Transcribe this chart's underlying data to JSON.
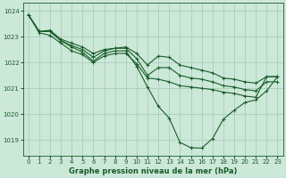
{
  "title": "Graphe pression niveau de la mer (hPa)",
  "bg_color": "#cce8d8",
  "grid_color": "#aacfbc",
  "line_color": "#1a5c2a",
  "xlim": [
    -0.5,
    23.5
  ],
  "ylim": [
    1018.4,
    1024.3
  ],
  "yticks": [
    1019,
    1020,
    1021,
    1022,
    1023,
    1024
  ],
  "xticks": [
    0,
    1,
    2,
    3,
    4,
    5,
    6,
    7,
    8,
    9,
    10,
    11,
    12,
    13,
    14,
    15,
    16,
    17,
    18,
    19,
    20,
    21,
    22,
    23
  ],
  "series": [
    [
      1023.85,
      1023.2,
      1023.2,
      1022.85,
      1022.6,
      1022.4,
      1022.05,
      1022.35,
      1022.45,
      1022.45,
      1021.85,
      1021.05,
      1020.3,
      1019.85,
      1018.9,
      1018.7,
      1018.68,
      1019.05,
      1019.8,
      1020.15,
      1020.45,
      1020.55,
      1020.9,
      1021.45
    ],
    [
      1023.85,
      1023.2,
      1023.2,
      1022.85,
      1022.65,
      1022.5,
      1022.2,
      1022.45,
      1022.55,
      1022.55,
      1022.15,
      1021.5,
      1021.8,
      1021.8,
      1021.5,
      1021.4,
      1021.35,
      1021.25,
      1021.1,
      1021.05,
      1020.95,
      1020.9,
      1021.25,
      1021.25
    ],
    [
      1023.85,
      1023.2,
      1023.25,
      1022.9,
      1022.75,
      1022.6,
      1022.35,
      1022.5,
      1022.55,
      1022.6,
      1022.35,
      1021.9,
      1022.25,
      1022.2,
      1021.9,
      1021.8,
      1021.7,
      1021.6,
      1021.4,
      1021.35,
      1021.25,
      1021.2,
      1021.45,
      1021.45
    ],
    [
      1023.85,
      1023.15,
      1023.05,
      1022.75,
      1022.45,
      1022.3,
      1022.0,
      1022.25,
      1022.35,
      1022.35,
      1021.95,
      1021.4,
      1021.35,
      1021.25,
      1021.1,
      1021.05,
      1021.0,
      1020.95,
      1020.85,
      1020.8,
      1020.7,
      1020.65,
      1021.45,
      1021.45
    ]
  ]
}
